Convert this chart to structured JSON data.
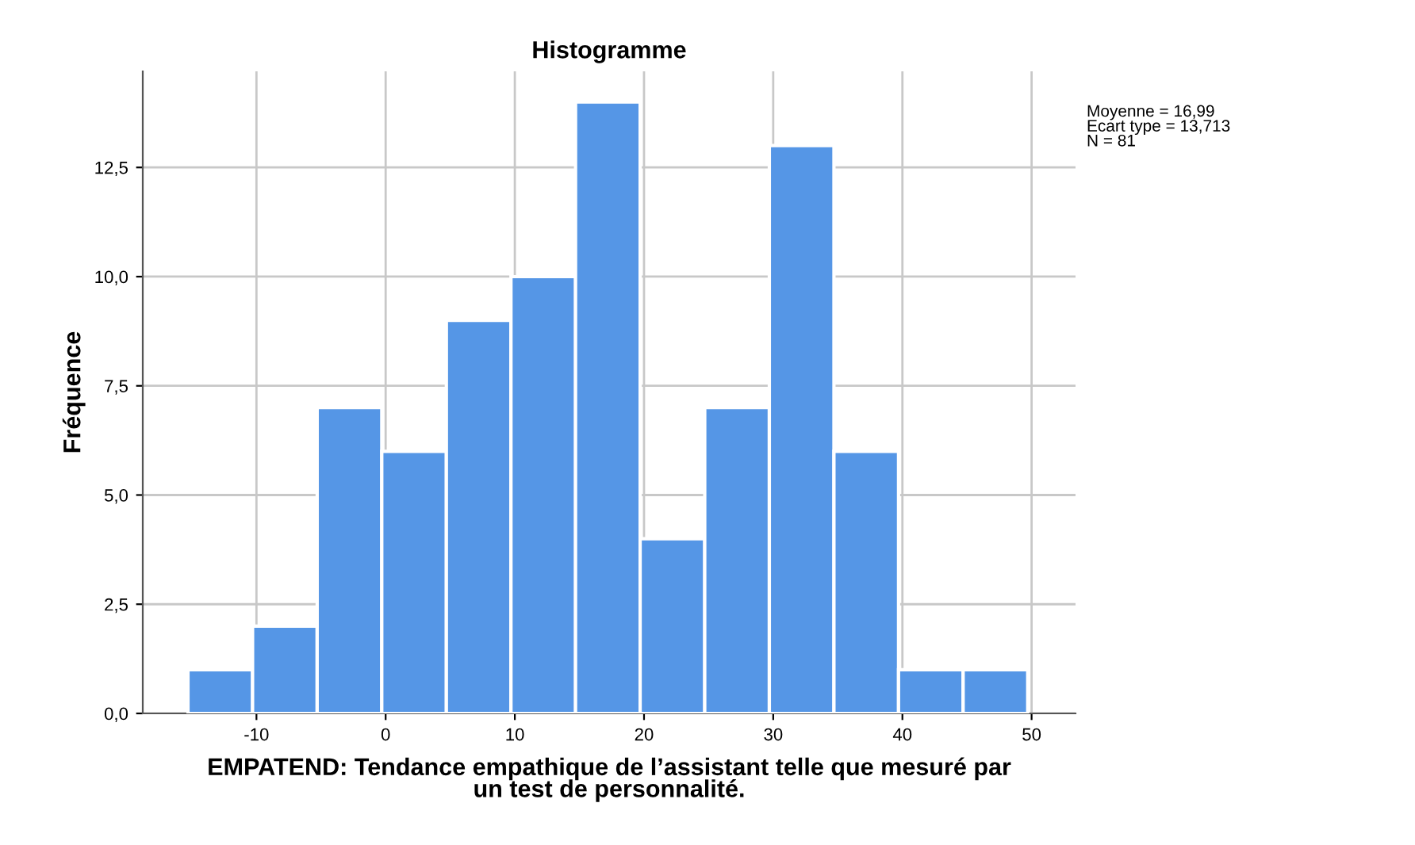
{
  "chart_data": {
    "type": "histogram",
    "title": "Histogramme",
    "xlabel": "EMPATEND: Tendance empathique de l’assistant telle que mesuré par\nun test de personnalité.",
    "ylabel": "Fréquence",
    "bins": [
      -15.3,
      -10.3,
      -5.3,
      -0.3,
      4.7,
      9.7,
      14.7,
      19.7,
      24.7,
      29.7,
      34.7,
      39.7,
      44.7,
      49.7
    ],
    "values": [
      1,
      2,
      7,
      6,
      9,
      10,
      14,
      4,
      7,
      13,
      6,
      1,
      1
    ],
    "color": "#5596e6",
    "xlim": [
      -18.8,
      53.4
    ],
    "ylim": [
      0,
      14.7
    ],
    "xticks": [
      -10,
      0,
      10,
      20,
      30,
      40,
      50
    ],
    "yticks": [
      {
        "value": 0,
        "label": "0,0"
      },
      {
        "value": 2.5,
        "label": "2,5"
      },
      {
        "value": 5,
        "label": "5,0"
      },
      {
        "value": 7.5,
        "label": "7,5"
      },
      {
        "value": 10,
        "label": "10,0"
      },
      {
        "value": 12.5,
        "label": "12,5"
      }
    ],
    "grid": true,
    "annotations": [
      "Moyenne = 16,99\nEcart type = 13,713\nN = 81"
    ]
  }
}
